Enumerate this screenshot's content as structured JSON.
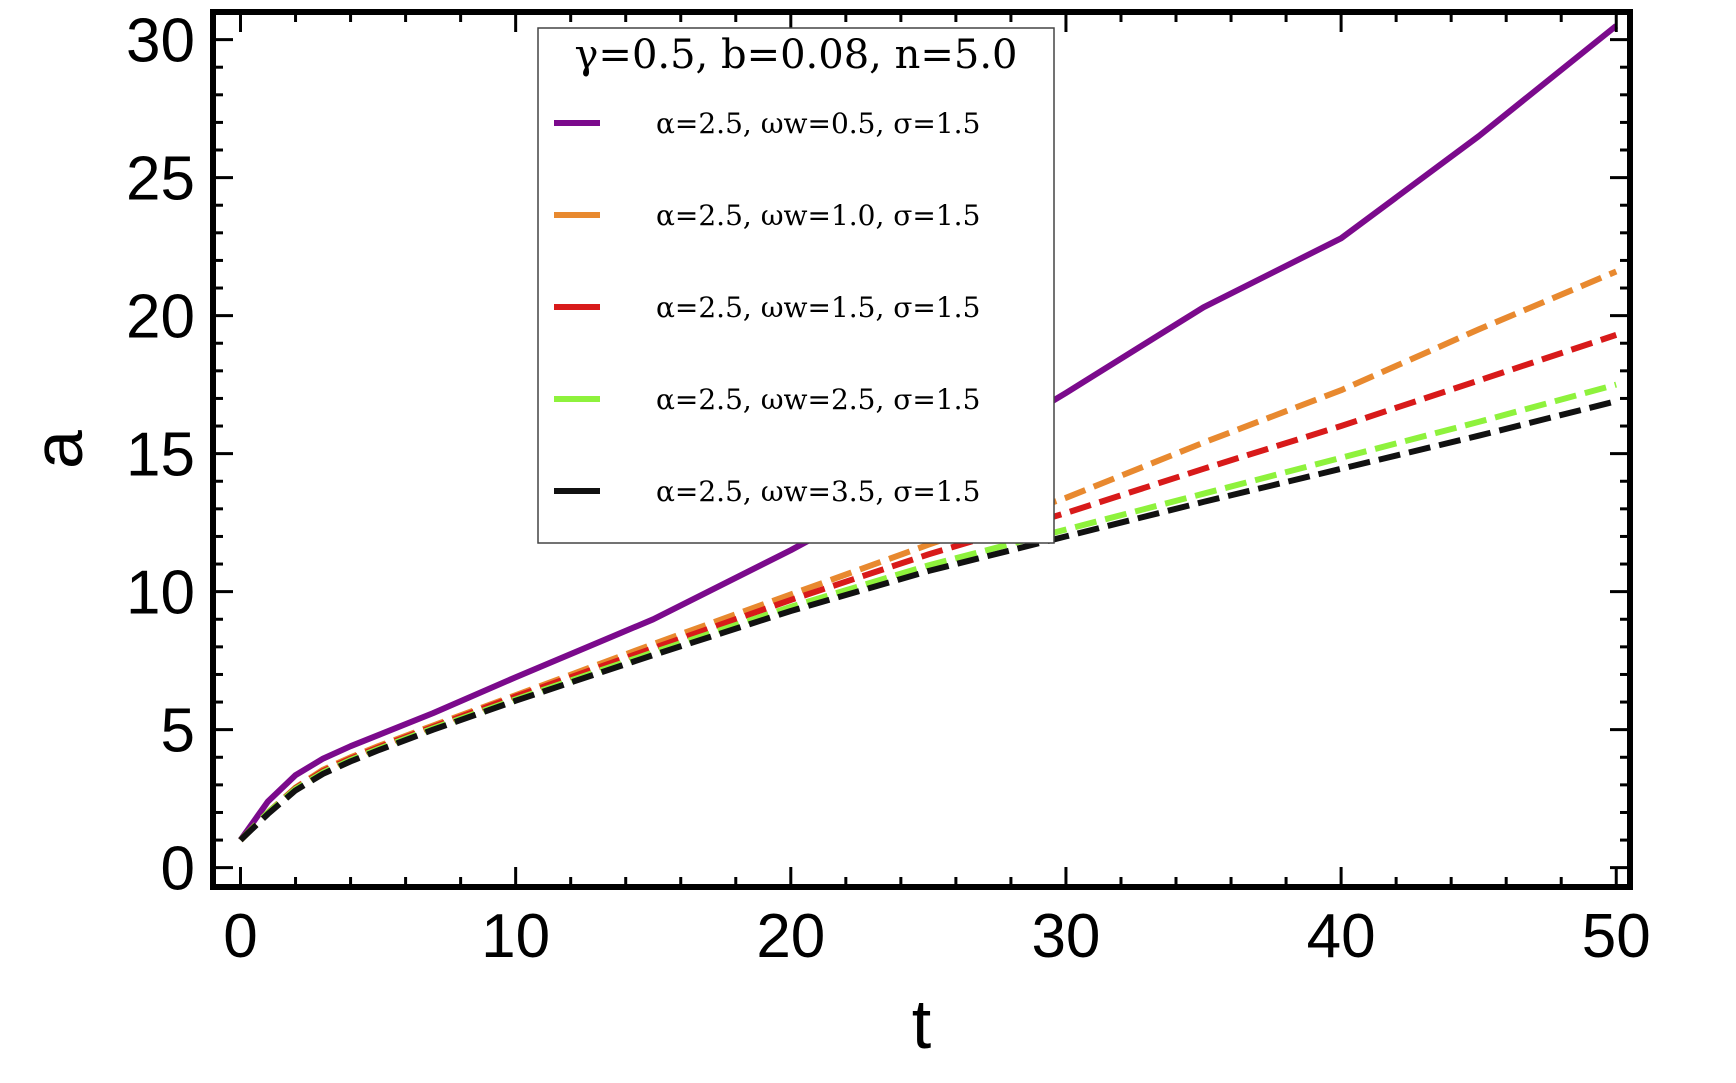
{
  "chart_data": {
    "type": "line",
    "title": "",
    "xlabel": "t",
    "ylabel": "a",
    "xlim": [
      -1,
      50.5
    ],
    "ylim": [
      -0.7,
      31
    ],
    "xticks": [
      0,
      10,
      20,
      30,
      40,
      50
    ],
    "yticks": [
      0,
      5,
      10,
      15,
      20,
      25,
      30
    ],
    "grid": false,
    "legend_position": "top-center",
    "legend_title": "γ=0.5, b=0.08, n=5.0",
    "x": [
      0,
      1,
      2,
      3,
      4,
      5,
      7,
      10,
      15,
      20,
      25,
      30,
      35,
      40,
      45,
      50
    ],
    "series": [
      {
        "name": "α=2.5, ωw=0.5, σ=1.5",
        "color": "#7b0a8c",
        "dash": "solid",
        "values": [
          1.0,
          2.4,
          3.35,
          3.95,
          4.4,
          4.8,
          5.6,
          6.9,
          9.0,
          11.5,
          14.2,
          17.2,
          20.3,
          22.8,
          26.5,
          30.5
        ]
      },
      {
        "name": "α=2.5, ωw=1.0, σ=1.5",
        "color": "#e8892f",
        "dash": "dashed",
        "values": [
          1.0,
          2.0,
          2.9,
          3.55,
          4.0,
          4.4,
          5.15,
          6.25,
          8.1,
          9.9,
          11.7,
          13.4,
          15.4,
          17.3,
          19.5,
          21.6
        ]
      },
      {
        "name": "α=2.5, ωw=1.5, σ=1.5",
        "color": "#d81a1a",
        "dash": "dashed",
        "values": [
          1.0,
          2.0,
          2.88,
          3.5,
          3.95,
          4.35,
          5.1,
          6.2,
          7.95,
          9.7,
          11.35,
          12.85,
          14.45,
          16.0,
          17.65,
          19.3
        ]
      },
      {
        "name": "α=2.5, ωw=2.5, σ=1.5",
        "color": "#8ef23c",
        "dash": "dashed",
        "values": [
          1.0,
          2.0,
          2.85,
          3.45,
          3.9,
          4.3,
          5.05,
          6.1,
          7.8,
          9.45,
          10.95,
          12.25,
          13.55,
          14.85,
          16.15,
          17.5
        ]
      },
      {
        "name": "α=2.5, ωw=3.5, σ=1.5",
        "color": "#111111",
        "dash": "dashed",
        "values": [
          1.0,
          1.95,
          2.8,
          3.4,
          3.85,
          4.25,
          5.0,
          6.05,
          7.7,
          9.3,
          10.75,
          12.0,
          13.25,
          14.45,
          15.65,
          16.9
        ]
      }
    ]
  }
}
